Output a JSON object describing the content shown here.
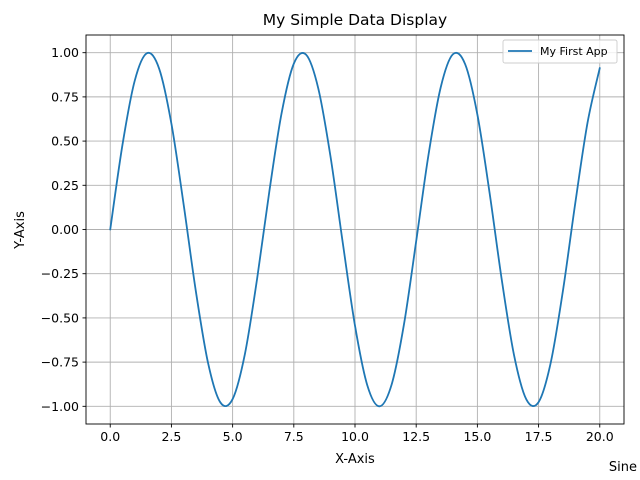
{
  "chart_data": {
    "type": "line",
    "title": "My Simple Data Display",
    "xlabel": "X-Axis",
    "ylabel": "Y-Axis",
    "xlim": [
      -0.99,
      20.99
    ],
    "ylim": [
      -1.1,
      1.1
    ],
    "xticks": [
      0.0,
      2.5,
      5.0,
      7.5,
      10.0,
      12.5,
      15.0,
      17.5,
      20.0
    ],
    "xtick_labels": [
      "0.0",
      "2.5",
      "5.0",
      "7.5",
      "10.0",
      "12.5",
      "15.0",
      "17.5",
      "20.0"
    ],
    "yticks": [
      -1.0,
      -0.75,
      -0.5,
      -0.25,
      0.0,
      0.25,
      0.5,
      0.75,
      1.0
    ],
    "ytick_labels": [
      "−1.00",
      "−0.75",
      "−0.50",
      "−0.25",
      "0.00",
      "0.25",
      "0.50",
      "0.75",
      "1.00"
    ],
    "grid": true,
    "legend_position": "top-right",
    "series": [
      {
        "name": "My First App",
        "color": "#1f77b4",
        "x": [
          0.0,
          0.5,
          1.0,
          1.5,
          2.0,
          2.5,
          3.0,
          3.5,
          4.0,
          4.5,
          5.0,
          5.5,
          6.0,
          6.5,
          7.0,
          7.5,
          8.0,
          8.5,
          9.0,
          9.5,
          10.0,
          10.5,
          11.0,
          11.5,
          12.0,
          12.5,
          13.0,
          13.5,
          14.0,
          14.5,
          15.0,
          15.5,
          16.0,
          16.5,
          17.0,
          17.5,
          18.0,
          18.5,
          19.0,
          19.5,
          20.0
        ],
        "y": [
          0.0,
          0.479,
          0.841,
          0.997,
          0.909,
          0.598,
          0.141,
          -0.351,
          -0.757,
          -0.978,
          -0.959,
          -0.706,
          -0.279,
          0.215,
          0.657,
          0.938,
          0.989,
          0.798,
          0.412,
          -0.075,
          -0.544,
          -0.88,
          -1.0,
          -0.875,
          -0.537,
          -0.066,
          0.42,
          0.803,
          0.991,
          0.935,
          0.65,
          0.206,
          -0.288,
          -0.712,
          -0.961,
          -0.976,
          -0.751,
          -0.342,
          0.15,
          0.604,
          0.913
        ]
      }
    ]
  },
  "corner_label": "Sine"
}
